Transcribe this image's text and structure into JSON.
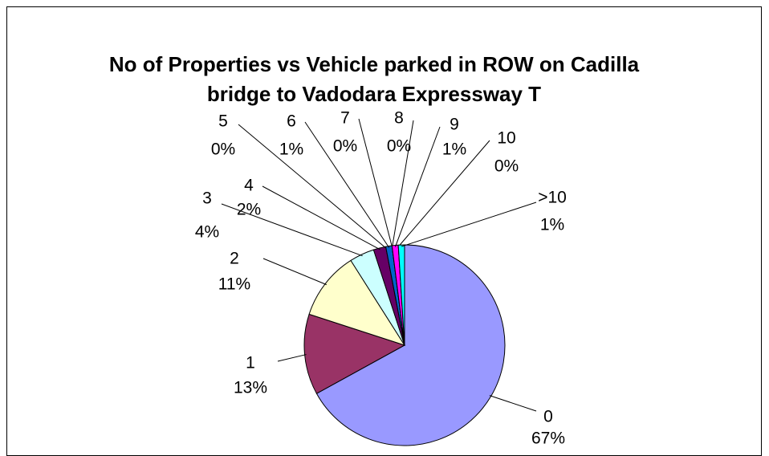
{
  "chart_data": {
    "type": "pie",
    "title": "No of Properties vs Vehicle parked in ROW on Cadilla bridge to Vadodara Expressway T",
    "categories": [
      "0",
      "1",
      "2",
      "3",
      "4",
      "5",
      "6",
      "7",
      "8",
      "9",
      "10",
      ">10"
    ],
    "values": [
      67,
      13,
      11,
      4,
      2,
      0,
      1,
      0,
      0,
      1,
      0,
      1
    ],
    "value_labels": [
      "67%",
      "13%",
      "11%",
      "4%",
      "2%",
      "0%",
      "1%",
      "0%",
      "0%",
      "1%",
      "0%",
      "1%"
    ],
    "colors": [
      "#9999ff",
      "#993366",
      "#ffffcc",
      "#ccffff",
      "#660066",
      "#ff8080",
      "#0066cc",
      "#ccccff",
      "#000080",
      "#ff00ff",
      "#ffff00",
      "#00ffff"
    ]
  }
}
